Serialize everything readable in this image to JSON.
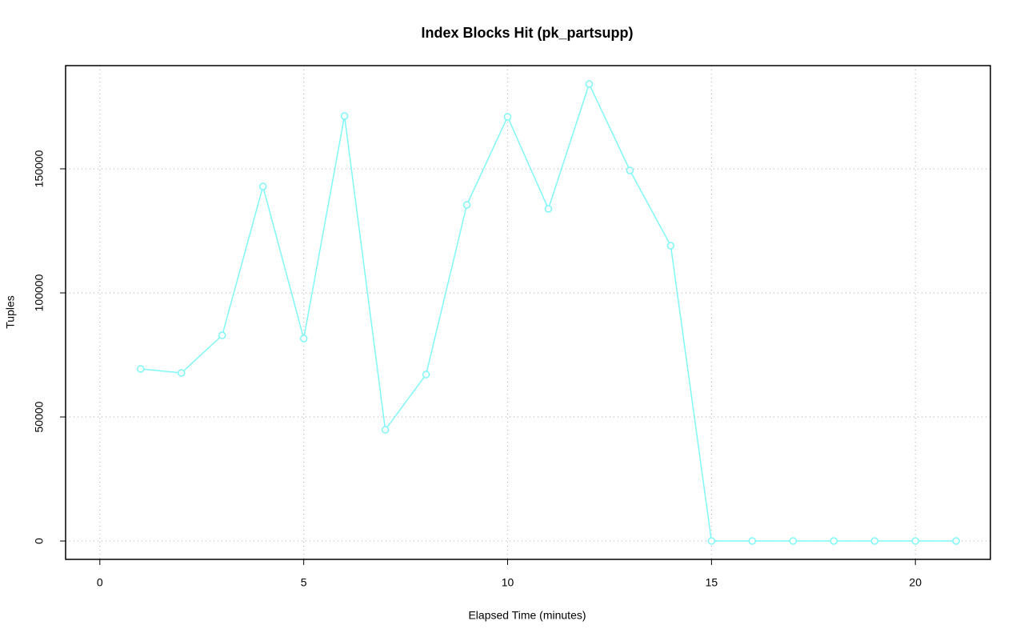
{
  "chart_data": {
    "type": "line",
    "title": "Index Blocks Hit (pk_partsupp)",
    "x_label": "Elapsed Time (minutes)",
    "y_label": "Tuples",
    "x": [
      1,
      2,
      3,
      4,
      5,
      6,
      7,
      8,
      9,
      10,
      11,
      12,
      13,
      14,
      15,
      16,
      17,
      18,
      19,
      20,
      21
    ],
    "values": [
      69355,
      67742,
      82903,
      142903,
      81613,
      171290,
      44839,
      67097,
      135484,
      170968,
      133871,
      184194,
      149355,
      119032,
      0,
      0,
      0,
      0,
      0,
      0,
      0
    ],
    "color": "#7ff7f7",
    "xlim": [
      -0.84,
      21.84
    ],
    "xticks": [
      0,
      5,
      10,
      15,
      20
    ],
    "ylim": [
      -7400,
      191600
    ],
    "yticks": [
      0,
      50000,
      100000,
      150000
    ],
    "grid": true
  }
}
